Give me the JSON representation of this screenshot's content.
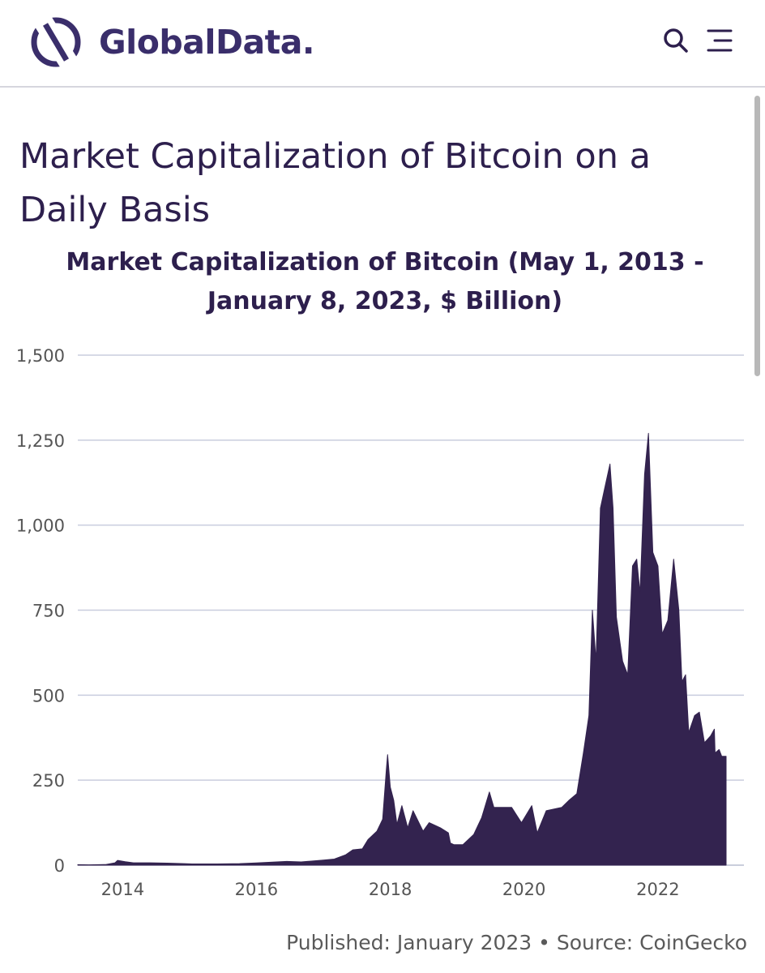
{
  "header": {
    "logo_text": "GlobalData.",
    "search_icon": "search-icon",
    "menu_icon": "hamburger-menu-icon",
    "brand_color": "#3a2e6b"
  },
  "page": {
    "title": "Market Capitalization of Bitcoin on a Daily Basis"
  },
  "chart_data": {
    "type": "area",
    "title": "Market Capitalization of Bitcoin (May 1, 2013 - January 8, 2023, $ Billion)",
    "xlabel": "",
    "ylabel": "",
    "ylim": [
      0,
      1500
    ],
    "xlim": [
      "2013-05-01",
      "2023-01-08"
    ],
    "y_ticks": [
      0,
      250,
      500,
      750,
      1000,
      1250,
      1500
    ],
    "y_tick_labels": [
      "0",
      "250",
      "500",
      "750",
      "1,000",
      "1,250",
      "1,500"
    ],
    "x_ticks": [
      "2014",
      "2016",
      "2018",
      "2020",
      "2022"
    ],
    "grid": true,
    "fill_color": "#33234f",
    "series": [
      {
        "x": [
          "2013-05-01",
          "2013-07-01",
          "2013-10-01",
          "2013-11-20",
          "2013-12-04",
          "2014-01-15",
          "2014-03-01",
          "2014-06-01",
          "2014-09-01",
          "2014-12-01",
          "2015-01-15",
          "2015-06-01",
          "2015-10-01",
          "2016-01-01",
          "2016-06-15",
          "2016-09-01",
          "2017-01-01",
          "2017-03-01",
          "2017-05-01",
          "2017-06-10",
          "2017-08-01",
          "2017-09-01",
          "2017-10-20",
          "2017-11-20",
          "2017-12-10",
          "2017-12-17",
          "2018-01-01",
          "2018-01-20",
          "2018-02-06",
          "2018-03-05",
          "2018-04-06",
          "2018-05-05",
          "2018-06-29",
          "2018-08-01",
          "2018-10-01",
          "2018-11-14",
          "2018-11-25",
          "2018-12-15",
          "2019-02-01",
          "2019-04-01",
          "2019-05-15",
          "2019-06-26",
          "2019-07-20",
          "2019-09-01",
          "2019-10-25",
          "2019-12-18",
          "2020-02-12",
          "2020-03-13",
          "2020-05-01",
          "2020-07-25",
          "2020-09-01",
          "2020-10-15",
          "2020-11-20",
          "2020-12-20",
          "2021-01-08",
          "2021-01-28",
          "2021-02-21",
          "2021-03-13",
          "2021-04-14",
          "2021-05-01",
          "2021-05-19",
          "2021-06-22",
          "2021-07-20",
          "2021-08-15",
          "2021-09-07",
          "2021-09-25",
          "2021-10-20",
          "2021-11-10",
          "2021-12-04",
          "2022-01-01",
          "2022-01-24",
          "2022-02-24",
          "2022-03-28",
          "2022-04-25",
          "2022-05-12",
          "2022-06-01",
          "2022-06-18",
          "2022-07-20",
          "2022-08-15",
          "2022-09-12",
          "2022-10-15",
          "2022-11-05",
          "2022-11-09",
          "2022-12-01",
          "2022-12-15",
          "2023-01-08"
        ],
        "values": [
          1.5,
          1.0,
          1.8,
          7,
          14,
          10,
          7,
          7,
          6,
          4.5,
          3.5,
          3.5,
          4.5,
          6.5,
          11,
          9.5,
          15,
          18,
          30,
          45,
          48,
          75,
          100,
          135,
          280,
          325,
          230,
          190,
          120,
          175,
          110,
          160,
          100,
          125,
          110,
          95,
          65,
          60,
          60,
          90,
          140,
          215,
          170,
          170,
          170,
          125,
          175,
          95,
          160,
          170,
          190,
          210,
          330,
          440,
          750,
          600,
          1050,
          1100,
          1180,
          1050,
          730,
          600,
          560,
          880,
          900,
          800,
          1150,
          1270,
          920,
          880,
          680,
          720,
          900,
          750,
          540,
          560,
          390,
          440,
          450,
          360,
          380,
          400,
          330,
          340,
          320,
          320
        ]
      }
    ]
  },
  "footer": {
    "note": "Published: January 2023 • Source: CoinGecko"
  }
}
